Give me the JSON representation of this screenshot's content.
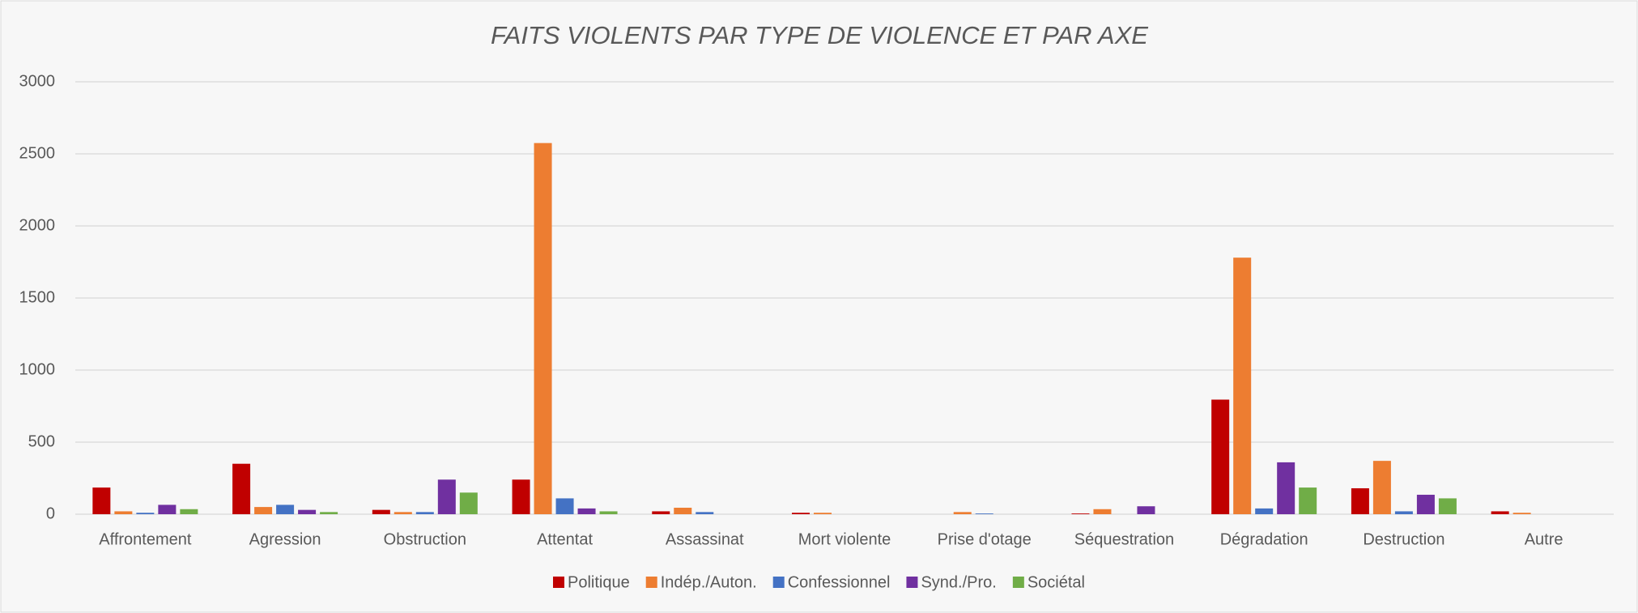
{
  "chart_data": {
    "type": "bar",
    "title": "FAITS VIOLENTS PAR TYPE DE VIOLENCE ET PAR AXE",
    "categories": [
      "Affrontement",
      "Agression",
      "Obstruction",
      "Attentat",
      "Assassinat",
      "Mort violente",
      "Prise d'otage",
      "Séquestration",
      "Dégradation",
      "Destruction",
      "Autre"
    ],
    "series": [
      {
        "name": "Politique",
        "color": "#c00000",
        "values": [
          185,
          350,
          30,
          240,
          20,
          10,
          0,
          5,
          795,
          180,
          20
        ]
      },
      {
        "name": "Indép./Auton.",
        "color": "#ed7d31",
        "values": [
          20,
          50,
          15,
          2575,
          45,
          10,
          15,
          35,
          1780,
          370,
          10
        ]
      },
      {
        "name": "Confessionnel",
        "color": "#4472c4",
        "values": [
          10,
          65,
          15,
          110,
          15,
          0,
          5,
          0,
          40,
          20,
          0
        ]
      },
      {
        "name": "Synd./Pro.",
        "color": "#7030a0",
        "values": [
          65,
          30,
          240,
          40,
          0,
          0,
          0,
          55,
          360,
          135,
          0
        ]
      },
      {
        "name": "Sociétal",
        "color": "#70ad47",
        "values": [
          35,
          15,
          150,
          20,
          0,
          0,
          0,
          0,
          185,
          110,
          0
        ]
      }
    ],
    "ylim": [
      0,
      3000
    ],
    "yticks": [
      0,
      500,
      1000,
      1500,
      2000,
      2500,
      3000
    ],
    "grid": true,
    "legend": "bottom"
  }
}
